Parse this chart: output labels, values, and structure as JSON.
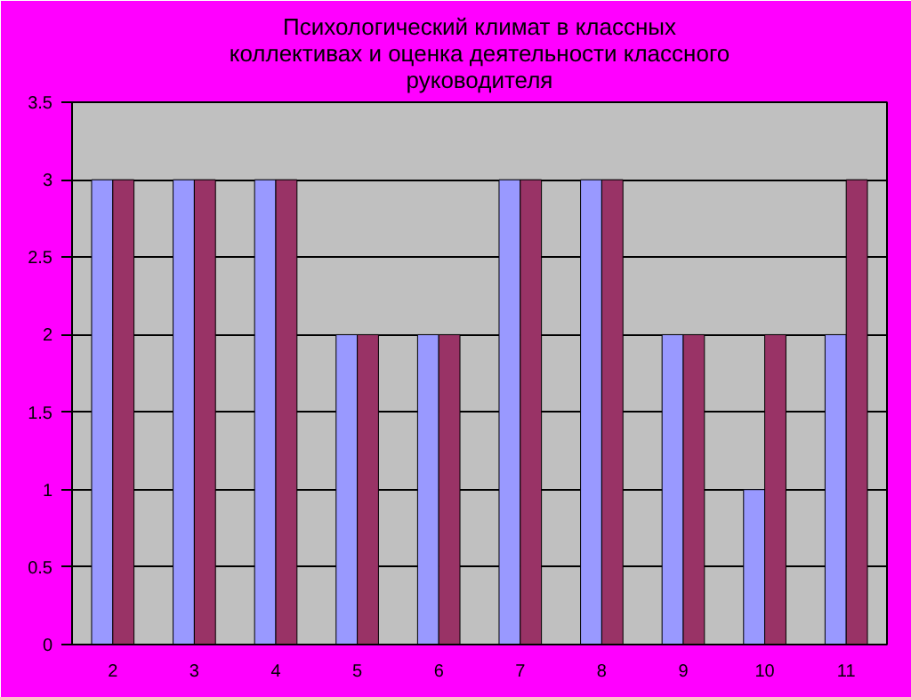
{
  "chart_data": {
    "type": "bar",
    "title": "Психологический климат в классных\nколлективах и оценка деятельности классного\nруководителя",
    "categories": [
      "2",
      "3",
      "4",
      "5",
      "6",
      "7",
      "8",
      "9",
      "10",
      "11"
    ],
    "series": [
      {
        "color": "#9999ff",
        "values": [
          3,
          3,
          3,
          2,
          2,
          3,
          3,
          2,
          1,
          2
        ]
      },
      {
        "color": "#993366",
        "values": [
          3,
          3,
          3,
          2,
          2,
          3,
          3,
          2,
          2,
          3
        ]
      }
    ],
    "ylim": [
      0,
      3.5
    ],
    "yticks": [
      0,
      0.5,
      1,
      1.5,
      2,
      2.5,
      3,
      3.5
    ],
    "grid": "y"
  }
}
